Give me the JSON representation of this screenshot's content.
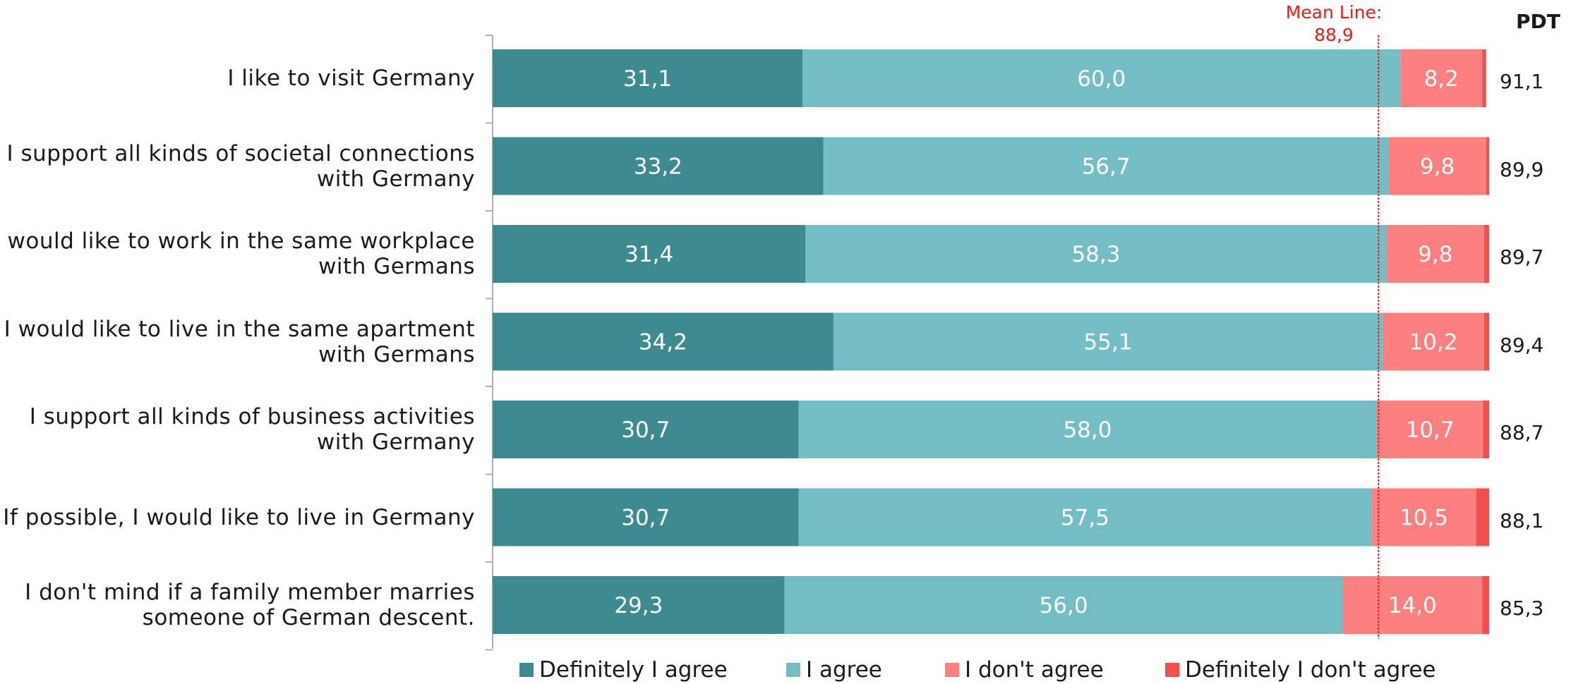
{
  "chart_data": {
    "type": "bar",
    "orientation": "horizontal",
    "stacked": true,
    "categories": [
      "I like to visit Germany",
      "I support all kinds of societal connections with Germany",
      "I would like to work in the same workplace with Germans",
      "I would like to live in the same apartment with Germans",
      "I support all kinds of business activities with Germany",
      "If possible, I would like to live in Germany",
      "I don't mind if a family member marries someone of German descent."
    ],
    "series": [
      {
        "name": "Definitely I agree",
        "color": "#3d8b90",
        "values": [
          31.1,
          33.2,
          31.4,
          34.2,
          30.7,
          30.7,
          29.3
        ],
        "labels": [
          "31,1",
          "33,2",
          "31,4",
          "34,2",
          "30,7",
          "30,7",
          "29,3"
        ]
      },
      {
        "name": "I agree",
        "color": "#73bec4",
        "values": [
          60.0,
          56.7,
          58.3,
          55.1,
          58.0,
          57.5,
          56.0
        ],
        "labels": [
          "60,0",
          "56,7",
          "58,3",
          "55,1",
          "58,0",
          "57,5",
          "56,0"
        ]
      },
      {
        "name": "I don't agree",
        "color": "#fc8080",
        "values": [
          8.2,
          9.8,
          9.8,
          10.2,
          10.7,
          10.5,
          14.0
        ],
        "labels": [
          "8,2",
          "9,8",
          "9,8",
          "10,2",
          "10,7",
          "10,5",
          "14,0"
        ]
      },
      {
        "name": "Definitely I don't agree",
        "color": "#f44f4f",
        "values": [
          0.4,
          0.3,
          0.5,
          0.5,
          0.6,
          1.3,
          0.7
        ],
        "labels": [
          "",
          "",
          "",
          "",
          "",
          "",
          ""
        ]
      }
    ],
    "pdt": {
      "header": "PDT",
      "values": [
        "91,1",
        "89,9",
        "89,7",
        "89,4",
        "88,7",
        "88,1",
        "85,3"
      ]
    },
    "mean_line": {
      "label": "Mean Line:",
      "value_label": "88,9",
      "value": 88.9,
      "color": "#e0201e"
    },
    "xlim": [
      0,
      100
    ],
    "legend_position": "bottom",
    "grid": false
  }
}
